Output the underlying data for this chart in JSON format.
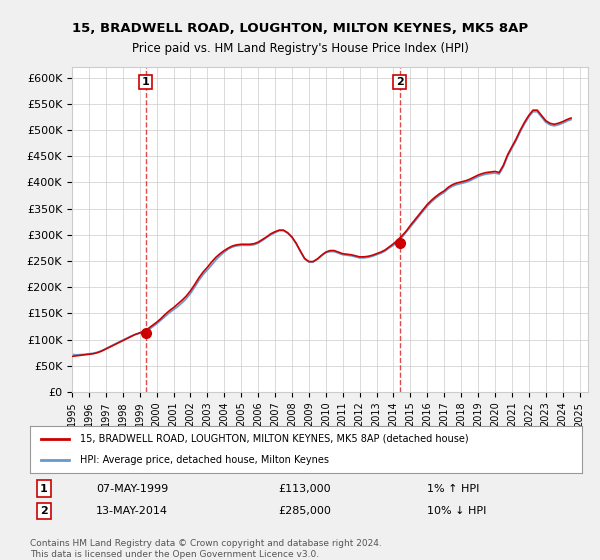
{
  "title1": "15, BRADWELL ROAD, LOUGHTON, MILTON KEYNES, MK5 8AP",
  "title2": "Price paid vs. HM Land Registry's House Price Index (HPI)",
  "ylabel": "",
  "ylim": [
    0,
    620000
  ],
  "yticks": [
    0,
    50000,
    100000,
    150000,
    200000,
    250000,
    300000,
    350000,
    400000,
    450000,
    500000,
    550000,
    600000
  ],
  "xlim_start": 1995.0,
  "xlim_end": 2025.5,
  "bg_color": "#f0f0f0",
  "plot_bg": "#ffffff",
  "grid_color": "#cccccc",
  "sale1_x": 1999.35,
  "sale1_y": 113000,
  "sale2_x": 2014.36,
  "sale2_y": 285000,
  "sale1_label": "1",
  "sale2_label": "2",
  "legend_line1": "15, BRADWELL ROAD, LOUGHTON, MILTON KEYNES, MK5 8AP (detached house)",
  "legend_line2": "HPI: Average price, detached house, Milton Keynes",
  "annot1_date": "07-MAY-1999",
  "annot1_price": "£113,000",
  "annot1_hpi": "1% ↑ HPI",
  "annot2_date": "13-MAY-2014",
  "annot2_price": "£285,000",
  "annot2_hpi": "10% ↓ HPI",
  "footer": "Contains HM Land Registry data © Crown copyright and database right 2024.\nThis data is licensed under the Open Government Licence v3.0.",
  "line_red": "#cc0000",
  "line_blue": "#6699cc",
  "marker_red": "#cc0000",
  "hpi_data_x": [
    1995.0,
    1995.25,
    1995.5,
    1995.75,
    1996.0,
    1996.25,
    1996.5,
    1996.75,
    1997.0,
    1997.25,
    1997.5,
    1997.75,
    1998.0,
    1998.25,
    1998.5,
    1998.75,
    1999.0,
    1999.25,
    1999.5,
    1999.75,
    2000.0,
    2000.25,
    2000.5,
    2000.75,
    2001.0,
    2001.25,
    2001.5,
    2001.75,
    2002.0,
    2002.25,
    2002.5,
    2002.75,
    2003.0,
    2003.25,
    2003.5,
    2003.75,
    2004.0,
    2004.25,
    2004.5,
    2004.75,
    2005.0,
    2005.25,
    2005.5,
    2005.75,
    2006.0,
    2006.25,
    2006.5,
    2006.75,
    2007.0,
    2007.25,
    2007.5,
    2007.75,
    2008.0,
    2008.25,
    2008.5,
    2008.75,
    2009.0,
    2009.25,
    2009.5,
    2009.75,
    2010.0,
    2010.25,
    2010.5,
    2010.75,
    2011.0,
    2011.25,
    2011.5,
    2011.75,
    2012.0,
    2012.25,
    2012.5,
    2012.75,
    2013.0,
    2013.25,
    2013.5,
    2013.75,
    2014.0,
    2014.25,
    2014.5,
    2014.75,
    2015.0,
    2015.25,
    2015.5,
    2015.75,
    2016.0,
    2016.25,
    2016.5,
    2016.75,
    2017.0,
    2017.25,
    2017.5,
    2017.75,
    2018.0,
    2018.25,
    2018.5,
    2018.75,
    2019.0,
    2019.25,
    2019.5,
    2019.75,
    2020.0,
    2020.25,
    2020.5,
    2020.75,
    2021.0,
    2021.25,
    2021.5,
    2021.75,
    2022.0,
    2022.25,
    2022.5,
    2022.75,
    2023.0,
    2023.25,
    2023.5,
    2023.75,
    2024.0,
    2024.25,
    2024.5
  ],
  "hpi_data_y": [
    72000,
    71000,
    71500,
    72000,
    73000,
    74000,
    76000,
    79000,
    83000,
    87000,
    91000,
    95000,
    99000,
    103000,
    107000,
    110000,
    112000,
    114000,
    118000,
    124000,
    130000,
    137000,
    144000,
    151000,
    157000,
    163000,
    170000,
    178000,
    188000,
    200000,
    213000,
    224000,
    233000,
    242000,
    252000,
    260000,
    267000,
    273000,
    277000,
    279000,
    280000,
    280000,
    280000,
    281000,
    284000,
    289000,
    295000,
    300000,
    304000,
    308000,
    308000,
    303000,
    295000,
    283000,
    268000,
    254000,
    248000,
    248000,
    253000,
    260000,
    266000,
    268000,
    268000,
    265000,
    262000,
    261000,
    260000,
    258000,
    256000,
    256000,
    257000,
    259000,
    262000,
    265000,
    269000,
    275000,
    280000,
    287000,
    295000,
    305000,
    315000,
    325000,
    335000,
    345000,
    355000,
    363000,
    370000,
    376000,
    381000,
    388000,
    393000,
    396000,
    398000,
    400000,
    403000,
    407000,
    411000,
    414000,
    416000,
    417000,
    418000,
    416000,
    430000,
    450000,
    465000,
    480000,
    497000,
    512000,
    525000,
    535000,
    535000,
    525000,
    515000,
    510000,
    508000,
    510000,
    513000,
    517000,
    520000
  ],
  "price_data_x": [
    1995.0,
    1995.25,
    1995.5,
    1995.75,
    1996.0,
    1996.25,
    1996.5,
    1996.75,
    1997.0,
    1997.25,
    1997.5,
    1997.75,
    1998.0,
    1998.25,
    1998.5,
    1998.75,
    1999.0,
    1999.25,
    1999.5,
    1999.75,
    2000.0,
    2000.25,
    2000.5,
    2000.75,
    2001.0,
    2001.25,
    2001.5,
    2001.75,
    2002.0,
    2002.25,
    2002.5,
    2002.75,
    2003.0,
    2003.25,
    2003.5,
    2003.75,
    2004.0,
    2004.25,
    2004.5,
    2004.75,
    2005.0,
    2005.25,
    2005.5,
    2005.75,
    2006.0,
    2006.25,
    2006.5,
    2006.75,
    2007.0,
    2007.25,
    2007.5,
    2007.75,
    2008.0,
    2008.25,
    2008.5,
    2008.75,
    2009.0,
    2009.25,
    2009.5,
    2009.75,
    2010.0,
    2010.25,
    2010.5,
    2010.75,
    2011.0,
    2011.25,
    2011.5,
    2011.75,
    2012.0,
    2012.25,
    2012.5,
    2012.75,
    2013.0,
    2013.25,
    2013.5,
    2013.75,
    2014.0,
    2014.25,
    2014.5,
    2014.75,
    2015.0,
    2015.25,
    2015.5,
    2015.75,
    2016.0,
    2016.25,
    2016.5,
    2016.75,
    2017.0,
    2017.25,
    2017.5,
    2017.75,
    2018.0,
    2018.25,
    2018.5,
    2018.75,
    2019.0,
    2019.25,
    2019.5,
    2019.75,
    2020.0,
    2020.25,
    2020.5,
    2020.75,
    2021.0,
    2021.25,
    2021.5,
    2021.75,
    2022.0,
    2022.25,
    2022.5,
    2022.75,
    2023.0,
    2023.25,
    2023.5,
    2023.75,
    2024.0,
    2024.25,
    2024.5
  ],
  "price_data_y": [
    68000,
    69000,
    70000,
    71000,
    72000,
    73000,
    75000,
    78000,
    82000,
    86000,
    90000,
    94000,
    98000,
    102000,
    106000,
    110000,
    113000,
    116000,
    121000,
    127000,
    133000,
    140000,
    148000,
    155000,
    161000,
    168000,
    175000,
    183000,
    193000,
    205000,
    218000,
    229000,
    238000,
    248000,
    257000,
    264000,
    270000,
    275000,
    279000,
    281000,
    282000,
    282000,
    282000,
    283000,
    286000,
    291000,
    296000,
    302000,
    306000,
    309000,
    309000,
    304000,
    296000,
    284000,
    269000,
    255000,
    249000,
    249000,
    254000,
    261000,
    267000,
    270000,
    270000,
    267000,
    264000,
    263000,
    262000,
    260000,
    258000,
    258000,
    259000,
    261000,
    264000,
    267000,
    271000,
    277000,
    283000,
    290000,
    298000,
    307000,
    318000,
    328000,
    338000,
    348000,
    358000,
    366000,
    373000,
    379000,
    384000,
    391000,
    396000,
    399000,
    401000,
    403000,
    406000,
    410000,
    414000,
    417000,
    419000,
    420000,
    421000,
    419000,
    433000,
    453000,
    468000,
    483000,
    500000,
    515000,
    528000,
    538000,
    538000,
    528000,
    518000,
    513000,
    511000,
    513000,
    516000,
    520000,
    523000
  ]
}
